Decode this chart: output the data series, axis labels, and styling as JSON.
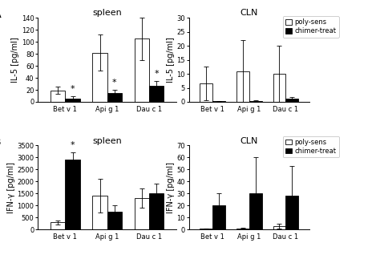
{
  "panel_A_spleen": {
    "title": "spleen",
    "ylabel": "IL-5 [pg/ml]",
    "ylim": [
      0,
      140
    ],
    "yticks": [
      0,
      20,
      40,
      60,
      80,
      100,
      120,
      140
    ],
    "categories": [
      "Bet v 1",
      "Api g 1",
      "Dau c 1"
    ],
    "poly_vals": [
      19,
      82,
      105
    ],
    "poly_errs": [
      6,
      30,
      35
    ],
    "chimer_vals": [
      6,
      15,
      27
    ],
    "chimer_errs": [
      3,
      5,
      8
    ],
    "stars": [
      {
        "bar": "chimer",
        "idx": 0
      },
      {
        "bar": "chimer",
        "idx": 1
      },
      {
        "bar": "chimer",
        "idx": 2
      }
    ]
  },
  "panel_A_CLN": {
    "title": "CLN",
    "ylabel": "IL-5 [pg/ml]",
    "ylim": [
      0,
      30
    ],
    "yticks": [
      0,
      5,
      10,
      15,
      20,
      25,
      30
    ],
    "categories": [
      "Bet v 1",
      "Api g 1",
      "Dau c 1"
    ],
    "poly_vals": [
      6.5,
      11,
      10
    ],
    "poly_errs": [
      6,
      11,
      10
    ],
    "chimer_vals": [
      0.2,
      0.3,
      1.1
    ],
    "chimer_errs": [
      0.1,
      0.2,
      0.5
    ],
    "stars": []
  },
  "panel_B_spleen": {
    "title": "spleen",
    "ylabel": "IFN-γ [pg/ml]",
    "ylim": [
      0,
      3500
    ],
    "yticks": [
      0,
      500,
      1000,
      1500,
      2000,
      2500,
      3000,
      3500
    ],
    "categories": [
      "Bet v 1",
      "Api g 1",
      "Dau c 1"
    ],
    "poly_vals": [
      300,
      1400,
      1300
    ],
    "poly_errs": [
      80,
      700,
      400
    ],
    "chimer_vals": [
      2900,
      750,
      1500
    ],
    "chimer_errs": [
      300,
      250,
      400
    ],
    "stars": [
      {
        "bar": "chimer",
        "idx": 0
      }
    ]
  },
  "panel_B_CLN": {
    "title": "CLN",
    "ylabel": "IFN-γ [pg/ml]",
    "ylim": [
      0,
      70
    ],
    "yticks": [
      0,
      10,
      20,
      30,
      40,
      50,
      60,
      70
    ],
    "categories": [
      "Bet v 1",
      "Api g 1",
      "Dau c 1"
    ],
    "poly_vals": [
      0.5,
      1,
      3
    ],
    "poly_errs": [
      0.3,
      0.5,
      2
    ],
    "chimer_vals": [
      20,
      30,
      28
    ],
    "chimer_errs": [
      10,
      30,
      25
    ],
    "stars": []
  },
  "bar_width": 0.35,
  "poly_color": "white",
  "chimer_color": "black",
  "edge_color": "black",
  "legend_labels": [
    "poly-sens",
    "chimer-treat"
  ],
  "background_color": "#ffffff",
  "font_size": 7,
  "title_font_size": 8
}
